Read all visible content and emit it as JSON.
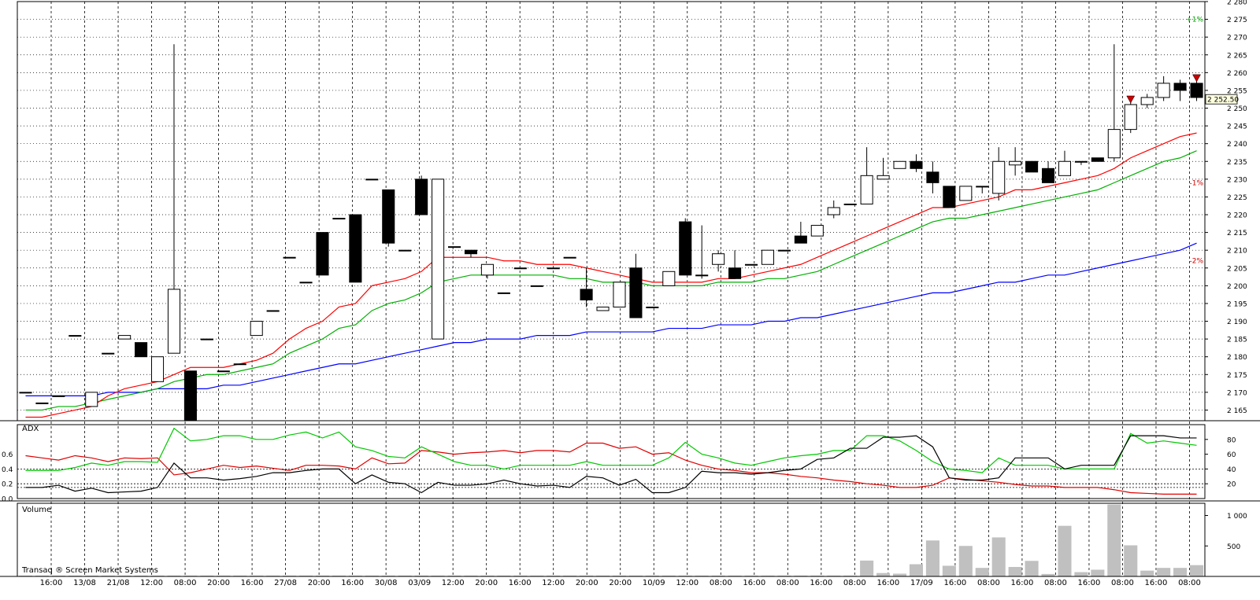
{
  "colors": {
    "background": "#ffffff",
    "grid": "#000000",
    "candle_up_fill": "#ffffff",
    "candle_down_fill": "#000000",
    "ma_fast": "#ff0000",
    "ma_mid": "#00b000",
    "ma_slow": "#0000ff",
    "adx_line": "#000000",
    "plus_di": "#00c800",
    "minus_di": "#e00000",
    "volume": "#c0c0c0",
    "signal": "#cc0000",
    "percent_up": "#00a000",
    "percent_down": "#cc0000"
  },
  "chart_data": [
    {
      "type": "candlestick",
      "panel": "price",
      "ylim": [
        2162,
        2280
      ],
      "price_ticks": [
        "2 165",
        "2 170",
        "2 175",
        "2 180",
        "2 185",
        "2 190",
        "2 195",
        "2 200",
        "2 205",
        "2 210",
        "2 215",
        "2 220",
        "2 225",
        "2 230",
        "2 235",
        "2 240",
        "2 245",
        "2 250",
        "2 255",
        "2 260",
        "2 265",
        "2 270",
        "2 275",
        "2 280"
      ],
      "last_price": "2 252.50",
      "percent_labels": [
        {
          "label": "+1%",
          "value": 2275,
          "color": "#00a000"
        },
        {
          "label": "-1%",
          "value": 2229,
          "color": "#cc0000"
        },
        {
          "label": "-2%",
          "value": 2207,
          "color": "#cc0000"
        }
      ],
      "candles": [
        {
          "o": 2170,
          "h": 2170,
          "l": 2170,
          "c": 2170
        },
        {
          "o": 2167,
          "h": 2167,
          "l": 2167,
          "c": 2167
        },
        {
          "o": 2169,
          "h": 2169,
          "l": 2169,
          "c": 2169
        },
        {
          "o": 2186,
          "h": 2186,
          "l": 2186,
          "c": 2186
        },
        {
          "o": 2166,
          "h": 2170,
          "l": 2166,
          "c": 2170
        },
        {
          "o": 2181,
          "h": 2181,
          "l": 2181,
          "c": 2181
        },
        {
          "o": 2185,
          "h": 2186,
          "l": 2185,
          "c": 2186
        },
        {
          "o": 2184,
          "h": 2184,
          "l": 2180,
          "c": 2180
        },
        {
          "o": 2173,
          "h": 2180,
          "l": 2173,
          "c": 2180
        },
        {
          "o": 2181,
          "h": 2268,
          "l": 2181,
          "c": 2199
        },
        {
          "o": 2176,
          "h": 2176,
          "l": 2162,
          "c": 2162
        },
        {
          "o": 2185,
          "h": 2185,
          "l": 2185,
          "c": 2185
        },
        {
          "o": 2176,
          "h": 2176,
          "l": 2176,
          "c": 2176
        },
        {
          "o": 2178,
          "h": 2178,
          "l": 2178,
          "c": 2178
        },
        {
          "o": 2186,
          "h": 2190,
          "l": 2186,
          "c": 2190
        },
        {
          "o": 2193,
          "h": 2193,
          "l": 2193,
          "c": 2193
        },
        {
          "o": 2208,
          "h": 2208,
          "l": 2208,
          "c": 2208
        },
        {
          "o": 2201,
          "h": 2201,
          "l": 2201,
          "c": 2201
        },
        {
          "o": 2215,
          "h": 2215,
          "l": 2203,
          "c": 2203
        },
        {
          "o": 2219,
          "h": 2219,
          "l": 2219,
          "c": 2219
        },
        {
          "o": 2220,
          "h": 2220,
          "l": 2201,
          "c": 2201
        },
        {
          "o": 2230,
          "h": 2230,
          "l": 2230,
          "c": 2230
        },
        {
          "o": 2227,
          "h": 2227,
          "l": 2211,
          "c": 2212
        },
        {
          "o": 2210,
          "h": 2210,
          "l": 2210,
          "c": 2210
        },
        {
          "o": 2230,
          "h": 2231,
          "l": 2220,
          "c": 2220
        },
        {
          "o": 2185,
          "h": 2230,
          "l": 2185,
          "c": 2230
        },
        {
          "o": 2211,
          "h": 2211,
          "l": 2211,
          "c": 2211
        },
        {
          "o": 2210,
          "h": 2210,
          "l": 2208,
          "c": 2209
        },
        {
          "o": 2203,
          "h": 2206,
          "l": 2202,
          "c": 2206
        },
        {
          "o": 2198,
          "h": 2198,
          "l": 2198,
          "c": 2198
        },
        {
          "o": 2205,
          "h": 2205,
          "l": 2205,
          "c": 2205
        },
        {
          "o": 2200,
          "h": 2200,
          "l": 2200,
          "c": 2200
        },
        {
          "o": 2205,
          "h": 2205,
          "l": 2205,
          "c": 2205
        },
        {
          "o": 2208,
          "h": 2208,
          "l": 2208,
          "c": 2208
        },
        {
          "o": 2199,
          "h": 2205,
          "l": 2194,
          "c": 2196
        },
        {
          "o": 2193,
          "h": 2194,
          "l": 2193,
          "c": 2194
        },
        {
          "o": 2194,
          "h": 2201,
          "l": 2194,
          "c": 2201
        },
        {
          "o": 2205,
          "h": 2209,
          "l": 2191,
          "c": 2191
        },
        {
          "o": 2194,
          "h": 2194,
          "l": 2194,
          "c": 2194
        },
        {
          "o": 2200,
          "h": 2204,
          "l": 2200,
          "c": 2204
        },
        {
          "o": 2218,
          "h": 2219,
          "l": 2203,
          "c": 2203
        },
        {
          "o": 2203,
          "h": 2217,
          "l": 2202,
          "c": 2203
        },
        {
          "o": 2206,
          "h": 2210,
          "l": 2204,
          "c": 2209
        },
        {
          "o": 2205,
          "h": 2210,
          "l": 2202,
          "c": 2202
        },
        {
          "o": 2206,
          "h": 2206,
          "l": 2206,
          "c": 2206
        },
        {
          "o": 2206,
          "h": 2210,
          "l": 2206,
          "c": 2210
        },
        {
          "o": 2210,
          "h": 2210,
          "l": 2210,
          "c": 2210
        },
        {
          "o": 2214,
          "h": 2218,
          "l": 2212,
          "c": 2212
        },
        {
          "o": 2214,
          "h": 2217,
          "l": 2214,
          "c": 2217
        },
        {
          "o": 2220,
          "h": 2224,
          "l": 2219,
          "c": 2222
        },
        {
          "o": 2223,
          "h": 2223,
          "l": 2223,
          "c": 2223
        },
        {
          "o": 2223,
          "h": 2239,
          "l": 2223,
          "c": 2231
        },
        {
          "o": 2230,
          "h": 2236,
          "l": 2230,
          "c": 2231
        },
        {
          "o": 2233,
          "h": 2235,
          "l": 2233,
          "c": 2235
        },
        {
          "o": 2235,
          "h": 2237,
          "l": 2232,
          "c": 2233
        },
        {
          "o": 2232,
          "h": 2235,
          "l": 2226,
          "c": 2229
        },
        {
          "o": 2228,
          "h": 2228,
          "l": 2222,
          "c": 2222
        },
        {
          "o": 2224,
          "h": 2228,
          "l": 2224,
          "c": 2228
        },
        {
          "o": 2228,
          "h": 2228,
          "l": 2226,
          "c": 2228
        },
        {
          "o": 2226,
          "h": 2239,
          "l": 2224,
          "c": 2235
        },
        {
          "o": 2234,
          "h": 2239,
          "l": 2231,
          "c": 2235
        },
        {
          "o": 2235,
          "h": 2235,
          "l": 2232,
          "c": 2232
        },
        {
          "o": 2233,
          "h": 2235,
          "l": 2229,
          "c": 2229
        },
        {
          "o": 2231,
          "h": 2238,
          "l": 2231,
          "c": 2235
        },
        {
          "o": 2235,
          "h": 2235,
          "l": 2234,
          "c": 2235
        },
        {
          "o": 2236,
          "h": 2236,
          "l": 2235,
          "c": 2235
        },
        {
          "o": 2236,
          "h": 2268,
          "l": 2235,
          "c": 2244
        },
        {
          "o": 2244,
          "h": 2252,
          "l": 2243,
          "c": 2251
        },
        {
          "o": 2251,
          "h": 2254,
          "l": 2250,
          "c": 2253
        },
        {
          "o": 2253,
          "h": 2259,
          "l": 2252,
          "c": 2257
        },
        {
          "o": 2257,
          "h": 2258,
          "l": 2252,
          "c": 2255
        },
        {
          "o": 2257,
          "h": 2258,
          "l": 2252,
          "c": 2253
        }
      ],
      "ma_fast": [
        2163,
        2163,
        2164,
        2165,
        2166,
        2169,
        2171,
        2172,
        2173,
        2175,
        2177,
        2177,
        2177,
        2178,
        2179,
        2181,
        2185,
        2188,
        2190,
        2194,
        2195,
        2200,
        2201,
        2202,
        2204,
        2208,
        2208,
        2208,
        2208,
        2207,
        2207,
        2206,
        2206,
        2206,
        2205,
        2204,
        2203,
        2202,
        2201,
        2201,
        2201,
        2201,
        2202,
        2202,
        2203,
        2204,
        2205,
        2206,
        2208,
        2210,
        2212,
        2214,
        2216,
        2218,
        2220,
        2222,
        2222,
        2223,
        2224,
        2225,
        2227,
        2227,
        2228,
        2229,
        2230,
        2231,
        2233,
        2236,
        2238,
        2240,
        2242,
        2243
      ],
      "ma_mid": [
        2165,
        2165,
        2166,
        2166,
        2167,
        2168,
        2169,
        2170,
        2171,
        2173,
        2174,
        2175,
        2175,
        2176,
        2177,
        2178,
        2181,
        2183,
        2185,
        2188,
        2189,
        2193,
        2195,
        2196,
        2198,
        2201,
        2202,
        2203,
        2203,
        2203,
        2203,
        2203,
        2203,
        2202,
        2202,
        2201,
        2201,
        2201,
        2200,
        2200,
        2200,
        2200,
        2201,
        2201,
        2201,
        2202,
        2202,
        2203,
        2204,
        2206,
        2208,
        2210,
        2212,
        2214,
        2216,
        2218,
        2219,
        2219,
        2220,
        2221,
        2222,
        2223,
        2224,
        2225,
        2226,
        2227,
        2229,
        2231,
        2233,
        2235,
        2236,
        2238
      ],
      "ma_slow": [
        2169,
        2169,
        2169,
        2169,
        2169,
        2170,
        2170,
        2170,
        2171,
        2171,
        2171,
        2171,
        2172,
        2172,
        2173,
        2174,
        2175,
        2176,
        2177,
        2178,
        2178,
        2179,
        2180,
        2181,
        2182,
        2183,
        2184,
        2184,
        2185,
        2185,
        2185,
        2186,
        2186,
        2186,
        2187,
        2187,
        2187,
        2187,
        2187,
        2188,
        2188,
        2188,
        2189,
        2189,
        2189,
        2190,
        2190,
        2191,
        2191,
        2192,
        2193,
        2194,
        2195,
        2196,
        2197,
        2198,
        2198,
        2199,
        2200,
        2201,
        2201,
        2202,
        2203,
        2203,
        2204,
        2205,
        2206,
        2207,
        2208,
        2209,
        2210,
        2212
      ],
      "signals": [
        {
          "index": 67
        },
        {
          "index": 71
        }
      ]
    },
    {
      "type": "line",
      "panel": "adx",
      "title": "ADX",
      "ylim": [
        0,
        100
      ],
      "left_ticks": [
        "0.6",
        "0.4",
        "0.2",
        "0.0"
      ],
      "right_ticks": [
        "80",
        "60",
        "40",
        "20"
      ],
      "reference_levels": [
        40,
        20,
        15
      ],
      "adx": [
        15,
        15,
        18,
        10,
        14,
        8,
        9,
        10,
        15,
        48,
        28,
        28,
        25,
        27,
        30,
        35,
        35,
        38,
        40,
        40,
        20,
        32,
        22,
        20,
        8,
        22,
        18,
        18,
        20,
        25,
        20,
        17,
        18,
        15,
        30,
        28,
        18,
        26,
        8,
        8,
        15,
        37,
        35,
        35,
        33,
        35,
        38,
        40,
        53,
        55,
        68,
        68,
        83,
        83,
        85,
        70,
        28,
        25,
        25,
        28,
        55,
        55,
        55,
        40,
        45,
        45,
        45,
        85,
        85,
        85,
        82,
        82
      ],
      "plus_di": [
        38,
        38,
        38,
        42,
        48,
        45,
        50,
        50,
        49,
        95,
        78,
        80,
        85,
        85,
        80,
        80,
        86,
        90,
        82,
        90,
        70,
        65,
        57,
        55,
        70,
        60,
        50,
        45,
        45,
        40,
        45,
        45,
        45,
        45,
        50,
        45,
        45,
        45,
        45,
        55,
        76,
        60,
        55,
        48,
        45,
        50,
        55,
        58,
        60,
        65,
        65,
        85,
        85,
        78,
        65,
        50,
        40,
        38,
        35,
        55,
        45,
        45,
        45,
        40,
        40,
        40,
        40,
        88,
        75,
        78,
        75,
        72
      ],
      "minus_di": [
        58,
        55,
        52,
        58,
        55,
        50,
        55,
        54,
        55,
        32,
        35,
        40,
        45,
        42,
        44,
        41,
        38,
        45,
        45,
        44,
        40,
        55,
        47,
        48,
        65,
        63,
        60,
        62,
        63,
        65,
        62,
        65,
        65,
        63,
        75,
        75,
        68,
        70,
        60,
        62,
        52,
        45,
        40,
        38,
        35,
        35,
        33,
        30,
        28,
        25,
        23,
        20,
        18,
        15,
        15,
        18,
        28,
        26,
        24,
        22,
        19,
        17,
        17,
        15,
        15,
        15,
        12,
        8,
        7,
        6,
        6,
        6
      ]
    },
    {
      "type": "bar",
      "panel": "volume",
      "title": "Volume",
      "ylim": [
        0,
        1200
      ],
      "right_ticks": [
        "1 000",
        "500"
      ],
      "watermark": "Transaq ® Screen Market Systems",
      "values": [
        0,
        0,
        0,
        0,
        0,
        0,
        0,
        0,
        0,
        0,
        0,
        0,
        0,
        0,
        0,
        0,
        0,
        0,
        0,
        0,
        0,
        0,
        0,
        0,
        0,
        0,
        0,
        0,
        0,
        0,
        0,
        0,
        0,
        0,
        0,
        0,
        0,
        0,
        0,
        0,
        0,
        0,
        0,
        0,
        0,
        0,
        0,
        0,
        0,
        0,
        0,
        260,
        55,
        45,
        200,
        590,
        175,
        500,
        140,
        640,
        155,
        255,
        40,
        830,
        70,
        110,
        1180,
        510,
        95,
        140,
        140,
        185
      ]
    },
    {
      "type": "axis",
      "time_labels": [
        "16:00",
        "13/08",
        "21/08",
        "12:00",
        "08:00",
        "20:00",
        "16:00",
        "27/08",
        "20:00",
        "16:00",
        "30/08",
        "03/09",
        "12:00",
        "20:00",
        "16:00",
        "12:00",
        "20:00",
        "20:00",
        "10/09",
        "12:00",
        "08:00",
        "16:00",
        "08:00",
        "16:00",
        "08:00",
        "16:00",
        "17/09",
        "16:00",
        "08:00",
        "16:00",
        "08:00",
        "16:00",
        "08:00",
        "16:00",
        "08:00"
      ]
    }
  ]
}
